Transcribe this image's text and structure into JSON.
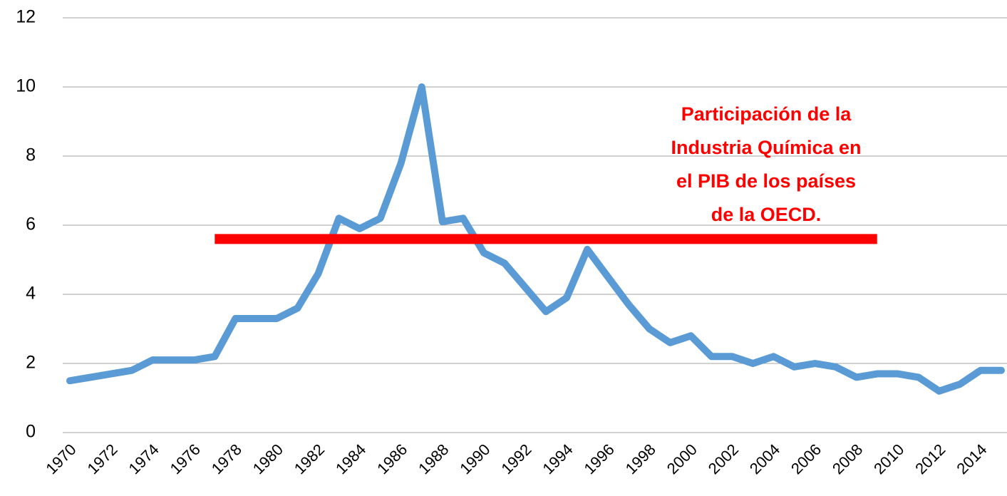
{
  "chart_data": {
    "type": "line",
    "categories": [
      "1970",
      null,
      "1972",
      null,
      "1974",
      null,
      "1976",
      null,
      "1978",
      null,
      "1980",
      null,
      "1982",
      null,
      "1984",
      null,
      "1986",
      null,
      "1988",
      null,
      "1990",
      null,
      "1992",
      null,
      "1994",
      null,
      "1996",
      null,
      "1998",
      null,
      "2000",
      null,
      "2002",
      null,
      "2004",
      null,
      "2006",
      null,
      "2008",
      null,
      "2010",
      null,
      "2012",
      null,
      "2014",
      null
    ],
    "series": [
      {
        "color": "#5b9bd5",
        "values": [
          1.5,
          1.6,
          1.7,
          1.8,
          2.1,
          2.1,
          2.1,
          2.2,
          3.3,
          3.3,
          3.3,
          3.6,
          4.6,
          6.2,
          5.9,
          6.2,
          7.8,
          10.0,
          6.1,
          6.2,
          5.2,
          4.9,
          4.2,
          3.5,
          3.9,
          5.3,
          4.5,
          3.7,
          3.0,
          2.6,
          2.8,
          2.2,
          2.2,
          2.0,
          2.2,
          1.9,
          2.0,
          1.9,
          1.6,
          1.7,
          1.7,
          1.6,
          1.2,
          1.4,
          1.8,
          1.8
        ]
      },
      {
        "color": "#ff0000",
        "values": [
          null,
          null,
          null,
          null,
          null,
          null,
          null,
          5.6,
          5.6,
          5.6,
          5.6,
          5.6,
          5.6,
          5.6,
          5.6,
          5.6,
          5.6,
          5.6,
          5.6,
          5.6,
          5.6,
          5.6,
          5.6,
          5.6,
          5.6,
          5.6,
          5.6,
          5.6,
          5.6,
          5.6,
          5.6,
          5.6,
          5.6,
          5.6,
          5.6,
          5.6,
          5.6,
          5.6,
          5.6,
          5.6,
          null,
          null,
          null,
          null,
          null,
          null
        ]
      }
    ],
    "ylim": [
      0,
      12
    ],
    "yticks": [
      0,
      2,
      4,
      6,
      8,
      10,
      12
    ],
    "grid": true,
    "annotation": {
      "color": "#ff0000",
      "lines": [
        "Participación de la",
        "Industria Química en",
        "el PIB de  los países",
        "de la OECD."
      ]
    }
  }
}
